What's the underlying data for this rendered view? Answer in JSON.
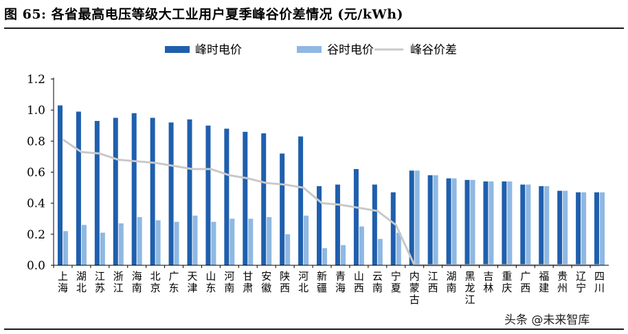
{
  "title": "图 65: 各省最高电压等级大工业用户夏季峰谷价差情况 (元/kWh)",
  "watermark": "头条 @未来智库",
  "colors": {
    "peak": "#1F5FAD",
    "valley": "#8FB8E2",
    "spread": "#C8C8C8",
    "axis": "#000000"
  },
  "chart_data": {
    "type": "bar",
    "categories": [
      "上海",
      "湖北",
      "江苏",
      "浙江",
      "海南",
      "北京",
      "广东",
      "天津",
      "山东",
      "河南",
      "甘肃",
      "安徽",
      "陕西",
      "河北",
      "新疆",
      "青海",
      "山西",
      "云南",
      "宁夏",
      "内蒙古",
      "江西",
      "湖南",
      "黑龙江",
      "吉林",
      "重庆",
      "广西",
      "福建",
      "贵州",
      "辽宁",
      "四川"
    ],
    "series": [
      {
        "name": "峰时电价",
        "kind": "bar",
        "values": [
          1.03,
          0.99,
          0.93,
          0.95,
          0.98,
          0.95,
          0.92,
          0.94,
          0.9,
          0.88,
          0.86,
          0.85,
          0.72,
          0.83,
          0.51,
          0.52,
          0.62,
          0.52,
          0.47,
          0.61,
          0.58,
          0.56,
          0.55,
          0.54,
          0.54,
          0.52,
          0.51,
          0.48,
          0.47,
          0.47
        ]
      },
      {
        "name": "谷时电价",
        "kind": "bar",
        "values": [
          0.22,
          0.26,
          0.21,
          0.27,
          0.31,
          0.29,
          0.28,
          0.32,
          0.28,
          0.3,
          0.3,
          0.31,
          0.2,
          0.32,
          0.11,
          0.13,
          0.25,
          0.17,
          0.21,
          0.61,
          0.58,
          0.56,
          0.55,
          0.54,
          0.54,
          0.52,
          0.51,
          0.48,
          0.47,
          0.47
        ]
      },
      {
        "name": "峰谷价差",
        "kind": "line",
        "values": [
          0.81,
          0.73,
          0.72,
          0.68,
          0.67,
          0.66,
          0.64,
          0.62,
          0.62,
          0.58,
          0.56,
          0.53,
          0.52,
          0.5,
          0.4,
          0.39,
          0.37,
          0.35,
          0.26,
          0.0,
          0.0,
          0.0,
          0.0,
          0.0,
          0.0,
          0.0,
          0.0,
          0.0,
          0.0,
          0.0
        ]
      }
    ],
    "ylim": [
      0,
      1.2
    ],
    "yticks": [
      "0.0",
      "0.2",
      "0.4",
      "0.6",
      "0.8",
      "1.0",
      "1.2"
    ],
    "grid": false,
    "legend_position": "top-center"
  }
}
